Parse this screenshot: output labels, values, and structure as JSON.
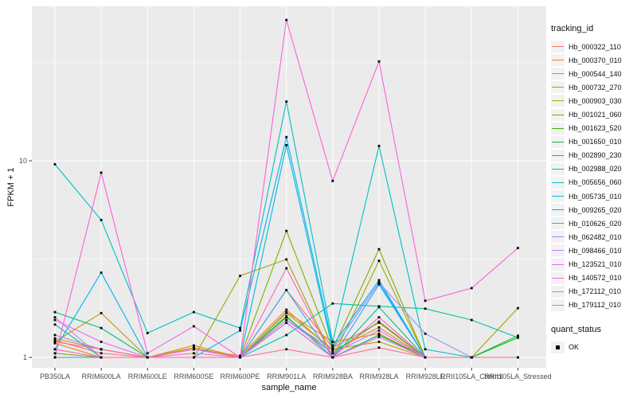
{
  "chart": {
    "panel": {
      "bg": "#EBEBEB",
      "grid": "#FFFFFF",
      "tick_color": "#333333"
    },
    "y_axis": {
      "label": "FPKM + 1",
      "ticks": [
        {
          "label": "10"
        },
        {
          "label": "1"
        }
      ]
    },
    "x_axis": {
      "label": "sample_name"
    },
    "legend": {
      "tracking_title": "tracking_id",
      "quant_title": "quant_status",
      "quant_items": [
        {
          "label": "OK",
          "marker": "black-square"
        }
      ]
    }
  },
  "chart_data": {
    "type": "line",
    "title": "",
    "xlabel": "sample_name",
    "ylabel": "FPKM + 1",
    "yscale": "log10",
    "ylim": [
      0.89,
      61
    ],
    "yticks_major": [
      1,
      10
    ],
    "yticks_minor": [
      3.162,
      31.62
    ],
    "grid": true,
    "legend_position": "right",
    "point_marker": "black-square",
    "point_legend": {
      "title": "quant_status",
      "items": [
        "OK"
      ]
    },
    "x": [
      "PB350LA",
      "RRIM600LA",
      "RRIM600LE",
      "RRIM600SE",
      "RRIM600PE",
      "RRIM901LA",
      "RRIM928BA",
      "RRIM928LA",
      "RRIM928LE",
      "RRII105LA_Control",
      "RRII105LA_Stressed"
    ],
    "series": [
      {
        "name": "Hb_000322_110",
        "color": "#F8766D",
        "values": [
          1.22,
          1.05,
          1.0,
          1.12,
          1.0,
          2.2,
          1.12,
          1.5,
          1.0,
          1.0,
          1.0
        ]
      },
      {
        "name": "Hb_000370_010",
        "color": "#E88526",
        "values": [
          1.18,
          1.0,
          1.0,
          1.1,
          1.02,
          1.75,
          1.08,
          1.42,
          1.0,
          1.0,
          1.0
        ]
      },
      {
        "name": "Hb_000544_140",
        "color": "#D89000",
        "values": [
          1.25,
          1.1,
          1.0,
          1.15,
          1.0,
          1.7,
          1.2,
          1.32,
          1.0,
          1.0,
          1.0
        ]
      },
      {
        "name": "Hb_000732_270",
        "color": "#C09B00",
        "values": [
          1.2,
          1.68,
          1.0,
          1.12,
          1.0,
          1.68,
          1.1,
          1.2,
          1.0,
          1.0,
          1.0
        ]
      },
      {
        "name": "Hb_000903_030",
        "color": "#A3A500",
        "values": [
          1.0,
          1.0,
          1.0,
          1.0,
          2.6,
          3.15,
          1.0,
          3.1,
          1.0,
          1.0,
          1.78
        ]
      },
      {
        "name": "Hb_001021_060",
        "color": "#7CAE00",
        "values": [
          1.05,
          1.0,
          1.0,
          1.0,
          1.0,
          4.4,
          1.1,
          3.55,
          1.0,
          1.0,
          1.0
        ]
      },
      {
        "name": "Hb_001623_520",
        "color": "#39B600",
        "values": [
          1.0,
          1.0,
          1.0,
          1.0,
          1.0,
          1.6,
          1.05,
          1.52,
          1.0,
          1.0,
          1.29
        ]
      },
      {
        "name": "Hb_001650_010",
        "color": "#00BB4E",
        "values": [
          1.0,
          1.0,
          1.0,
          1.0,
          1.0,
          1.5,
          1.0,
          1.3,
          1.0,
          1.0,
          1.26
        ]
      },
      {
        "name": "Hb_002890_230",
        "color": "#00BF7D",
        "values": [
          1.7,
          1.41,
          1.0,
          1.0,
          1.0,
          1.62,
          1.0,
          1.8,
          1.0,
          1.0,
          1.0
        ]
      },
      {
        "name": "Hb_002988_020",
        "color": "#00C1A3",
        "values": [
          1.47,
          1.0,
          1.0,
          1.0,
          1.0,
          1.3,
          1.88,
          1.82,
          1.77,
          1.55,
          1.26
        ]
      },
      {
        "name": "Hb_005656_060",
        "color": "#00BFC4",
        "values": [
          9.6,
          5.0,
          1.33,
          1.7,
          1.41,
          20.0,
          1.2,
          11.9,
          1.1,
          1.0,
          1.0
        ]
      },
      {
        "name": "Hb_005735_010",
        "color": "#00BAE0",
        "values": [
          1.0,
          1.0,
          1.0,
          1.0,
          1.0,
          12.0,
          1.1,
          2.4,
          1.0,
          1.0,
          1.0
        ]
      },
      {
        "name": "Hb_009265_020",
        "color": "#00B0F6",
        "values": [
          1.1,
          2.7,
          1.0,
          1.0,
          1.37,
          13.2,
          1.15,
          2.47,
          1.0,
          1.0,
          1.0
        ]
      },
      {
        "name": "Hb_010626_020",
        "color": "#35A2FF",
        "values": [
          1.0,
          1.0,
          1.0,
          1.0,
          1.0,
          2.2,
          1.0,
          2.35,
          1.0,
          1.0,
          1.0
        ]
      },
      {
        "name": "Hb_062482_010",
        "color": "#9590FF",
        "values": [
          1.3,
          1.1,
          1.0,
          1.0,
          1.0,
          1.55,
          1.1,
          2.4,
          1.32,
          1.0,
          1.0
        ]
      },
      {
        "name": "Hb_098466_010",
        "color": "#C77CFF",
        "values": [
          1.6,
          1.0,
          1.0,
          1.1,
          1.0,
          1.55,
          1.05,
          1.37,
          1.0,
          1.0,
          1.0
        ]
      },
      {
        "name": "Hb_123521_010",
        "color": "#E76BF3",
        "values": [
          1.55,
          1.2,
          1.0,
          1.1,
          1.0,
          1.5,
          1.0,
          1.27,
          1.0,
          1.0,
          1.0
        ]
      },
      {
        "name": "Hb_140572_010",
        "color": "#FA62DB",
        "values": [
          1.0,
          8.7,
          1.05,
          1.44,
          1.0,
          52.0,
          7.9,
          32.0,
          1.94,
          2.25,
          3.6
        ]
      },
      {
        "name": "Hb_172112_010",
        "color": "#FF62BC",
        "values": [
          1.1,
          1.0,
          1.0,
          1.0,
          1.0,
          2.84,
          1.0,
          1.6,
          1.0,
          1.0,
          1.0
        ]
      },
      {
        "name": "Hb_179112_010",
        "color": "#FF6A98",
        "values": [
          1.2,
          1.1,
          1.0,
          1.05,
          1.0,
          1.1,
          1.0,
          1.12,
          1.0,
          1.0,
          1.0
        ]
      }
    ]
  }
}
